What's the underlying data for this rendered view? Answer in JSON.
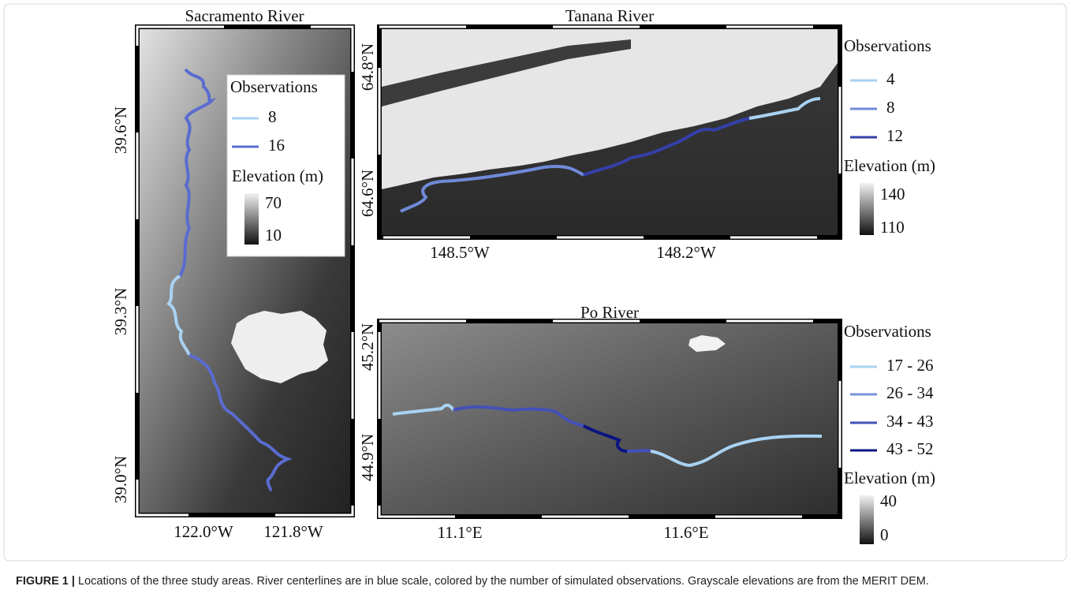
{
  "panels": [
    {
      "title": "Sacramento River",
      "y_ticks": [
        "39.6°N",
        "39.3°N",
        "39.0°N"
      ],
      "x_ticks": [
        "122.0°W",
        "121.8°W"
      ],
      "legend": {
        "title": "Observations",
        "entries": [
          {
            "label": "8",
            "color": "#a9d2f2"
          },
          {
            "label": "16",
            "color": "#5a6cd0"
          }
        ]
      },
      "colorbar": {
        "title": "Elevation (m)",
        "max": "70",
        "min": "10"
      }
    },
    {
      "title": "Tanana River",
      "y_ticks": [
        "64.8°N",
        "64.6°N"
      ],
      "x_ticks": [
        "148.5°W",
        "148.2°W"
      ],
      "legend": {
        "title": "Observations",
        "entries": [
          {
            "label": "4",
            "color": "#a9d2f2"
          },
          {
            "label": "8",
            "color": "#6f8ad8"
          },
          {
            "label": "12",
            "color": "#3440a8"
          }
        ]
      },
      "colorbar": {
        "title": "Elevation (m)",
        "max": "140",
        "min": "110"
      }
    },
    {
      "title": "Po River",
      "y_ticks": [
        "45.2°N",
        "44.9°N"
      ],
      "x_ticks": [
        "11.1°E",
        "11.6°E"
      ],
      "legend": {
        "title": "Observations",
        "entries": [
          {
            "label": "17 - 26",
            "color": "#a9d2f2"
          },
          {
            "label": "26 - 34",
            "color": "#7b93dc"
          },
          {
            "label": "34 - 43",
            "color": "#4451b8"
          },
          {
            "label": "43 - 52",
            "color": "#0b1480"
          }
        ]
      },
      "colorbar": {
        "title": "Elevation (m)",
        "max": "40",
        "min": "0"
      }
    }
  ],
  "caption": {
    "label": "FIGURE 1 |",
    "text": "Locations of the three study areas. River centerlines are in blue scale, colored by the number of simulated observations. Grayscale elevations are from the MERIT DEM."
  }
}
